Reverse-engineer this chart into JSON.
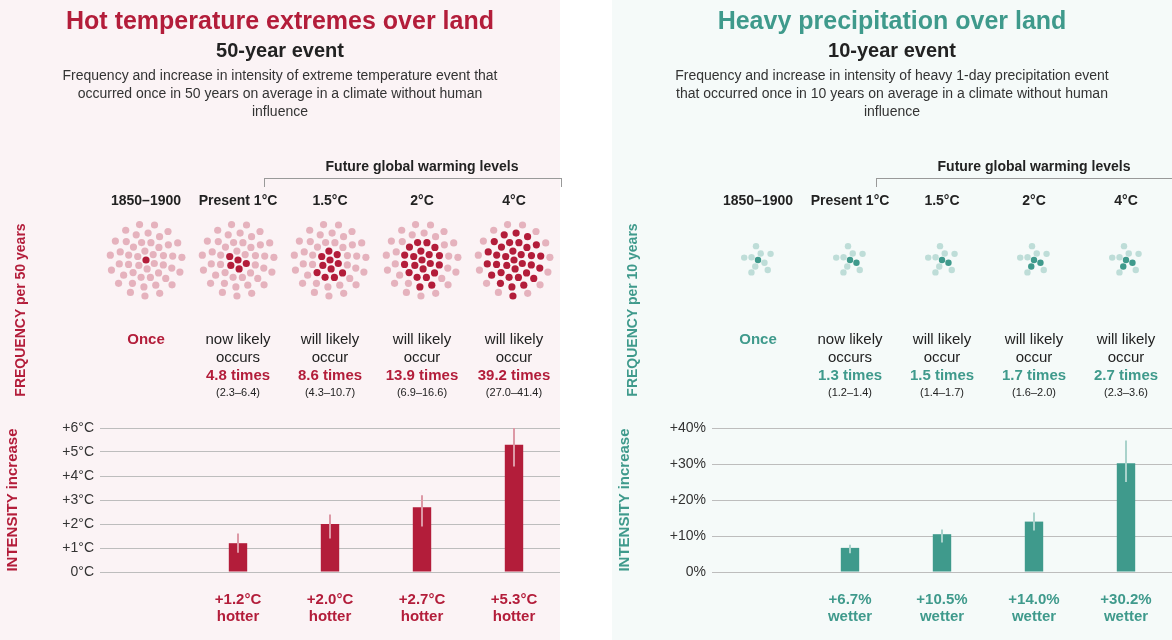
{
  "chart_data": [
    {
      "type": "bar",
      "title": "Hot temperature extremes over land",
      "subtitle": "50-year event",
      "categories": [
        "1850–1900",
        "Present 1°C",
        "1.5°C",
        "2°C",
        "4°C"
      ],
      "values": [
        null,
        1.2,
        2.0,
        2.7,
        5.3
      ],
      "errors": [
        null,
        [
          0.8,
          1.6
        ],
        [
          1.4,
          2.4
        ],
        [
          1.9,
          3.2
        ],
        [
          4.4,
          6.0
        ]
      ],
      "color": "#b31d3a",
      "value_labels": [
        null,
        "+1.2°C\nhotter",
        "+2.0°C\nhotter",
        "+2.7°C\nhotter",
        "+5.3°C\nhotter"
      ],
      "ylabel": "INTENSITY increase",
      "ylim": [
        0,
        6
      ],
      "yticks": [
        {
          "value": 0,
          "label": "0°C"
        },
        {
          "value": 1,
          "label": "+1°C"
        },
        {
          "value": 2,
          "label": "+2°C"
        },
        {
          "value": 3,
          "label": "+3°C"
        },
        {
          "value": 4,
          "label": "+4°C"
        },
        {
          "value": 5,
          "label": "+5°C"
        },
        {
          "value": 6,
          "label": "+6°C"
        }
      ],
      "grid": "y",
      "tick_labels": "y",
      "annotations": [
        "Frequency and increase in intensity of extreme temperature event that occurred once in 50 years on average in a climate without human influence",
        "Future global warming levels",
        "FREQUENCY per 50 years",
        "Once",
        "now likely\noccurs\n4.8 times\n(2.3–6.4)",
        "will likely\noccur\n8.6 times\n(4.3–10.7)",
        "will likely\noccur\n13.9 times\n(6.9–16.6)",
        "will likely\noccur\n39.2 times\n(27.0–41.4)"
      ]
    },
    {
      "type": "bar",
      "title": "Heavy precipitation over land",
      "subtitle": "10-year event",
      "categories": [
        "1850–1900",
        "Present 1°C",
        "1.5°C",
        "2°C",
        "4°C"
      ],
      "values": [
        null,
        6.7,
        10.5,
        14.0,
        30.2
      ],
      "errors": [
        null,
        [
          5.2,
          7.6
        ],
        [
          8.2,
          11.8
        ],
        [
          11.5,
          16.5
        ],
        [
          25,
          36.5
        ]
      ],
      "color": "#3f9a8c",
      "value_labels": [
        null,
        "+6.7%\nwetter",
        "+10.5%\nwetter",
        "+14.0%\nwetter",
        "+30.2%\nwetter"
      ],
      "ylabel": "INTENSITY increase",
      "ylim": [
        0,
        40
      ],
      "yticks": [
        {
          "value": 0,
          "label": "0%"
        },
        {
          "value": 10,
          "label": "+10%"
        },
        {
          "value": 20,
          "label": "+20%"
        },
        {
          "value": 30,
          "label": "+30%"
        },
        {
          "value": 40,
          "label": "+40%"
        }
      ],
      "grid": "y",
      "tick_labels": "y",
      "annotations": [
        "Frequency and increase in intensity of heavy 1-day precipitation event that occurred once in 10 years on average in a climate without human influence",
        "Future global warming levels",
        "FREQUENCY per 10 years",
        "Once",
        "now likely\noccurs\n1.3 times\n(1.2–1.4)",
        "will likely\noccur\n1.5 times\n(1.4–1.7)",
        "will likely\noccur\n1.7 times\n(1.6–2.0)",
        "will likely\noccur\n2.7 times\n(2.3–3.6)"
      ]
    }
  ]
}
